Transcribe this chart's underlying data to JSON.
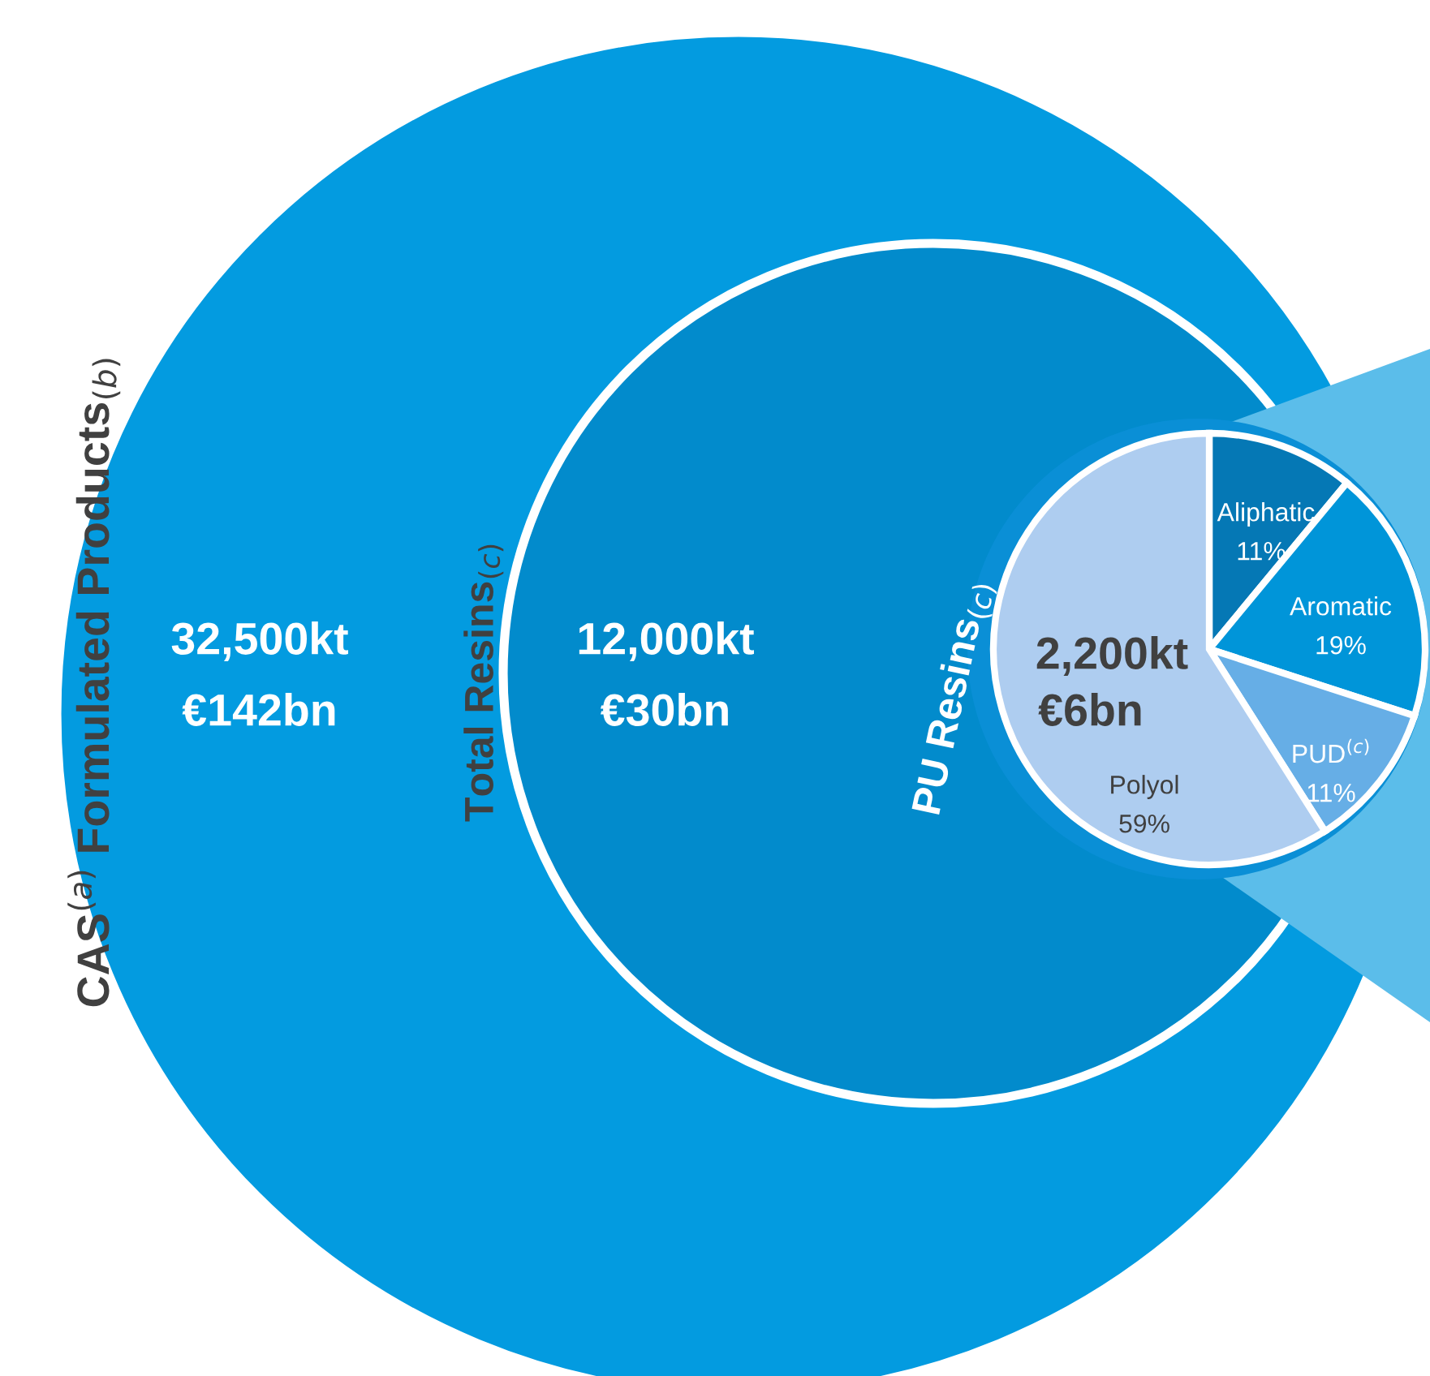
{
  "chart_data": {
    "type": "pie",
    "categories": [
      "Aliphatic",
      "Aromatic",
      "PUD$^{(c)}$",
      "Polyol"
    ],
    "values": [
      11,
      19,
      11,
      59
    ],
    "colors": [
      "#0578b5",
      "#0095d9",
      "#66aee6",
      "#aecdf0"
    ],
    "value_labels": [
      "11%",
      "19%",
      "11%",
      "59%"
    ],
    "annotations": [
      "CAS$^{(a)}$ Formulated Products$_{(b)}$",
      "32,500kt",
      "€142bn",
      "Total Resins$_{(c)}$",
      "12,000kt",
      "€30bn",
      "PU Resins$_{(c)}$",
      "2,200kt",
      "€6bn"
    ]
  }
}
